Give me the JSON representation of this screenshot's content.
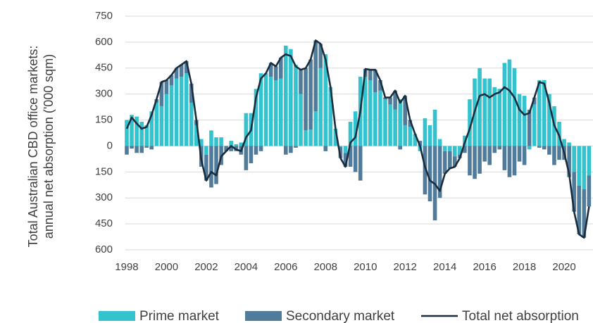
{
  "chart_data": {
    "type": "bar",
    "y_label_lines": [
      "Total Australian CBD office markets:",
      "annual net absorption ('000 sqm)"
    ],
    "x": [
      1998,
      1998.25,
      1998.5,
      1998.75,
      1999,
      1999.25,
      1999.5,
      1999.75,
      2000,
      2000.25,
      2000.5,
      2000.75,
      2001,
      2001.25,
      2001.5,
      2001.75,
      2002,
      2002.25,
      2002.5,
      2002.75,
      2003,
      2003.25,
      2003.5,
      2003.75,
      2004,
      2004.25,
      2004.5,
      2004.75,
      2005,
      2005.25,
      2005.5,
      2005.75,
      2006,
      2006.25,
      2006.5,
      2006.75,
      2007,
      2007.25,
      2007.5,
      2007.75,
      2008,
      2008.25,
      2008.5,
      2008.75,
      2009,
      2009.25,
      2009.5,
      2009.75,
      2010,
      2010.25,
      2010.5,
      2010.75,
      2011,
      2011.25,
      2011.5,
      2011.75,
      2012,
      2012.25,
      2012.5,
      2012.75,
      2013,
      2013.25,
      2013.5,
      2013.75,
      2014,
      2014.25,
      2014.5,
      2014.75,
      2015,
      2015.25,
      2015.5,
      2015.75,
      2016,
      2016.25,
      2016.5,
      2016.75,
      2017,
      2017.25,
      2017.5,
      2017.75,
      2018,
      2018.25,
      2018.5,
      2018.75,
      2019,
      2019.25,
      2019.5,
      2019.75,
      2020,
      2020.25,
      2020.5,
      2020.75,
      2021,
      2021.25
    ],
    "series": [
      {
        "name": "Prime market",
        "type": "bar",
        "color": "#33c3cf",
        "values": [
          150,
          180,
          170,
          140,
          120,
          200,
          250,
          230,
          300,
          350,
          390,
          400,
          420,
          250,
          120,
          40,
          -50,
          90,
          50,
          50,
          0,
          30,
          10,
          20,
          190,
          190,
          330,
          420,
          420,
          400,
          380,
          390,
          580,
          560,
          470,
          300,
          90,
          95,
          200,
          450,
          530,
          340,
          100,
          -5,
          -40,
          140,
          200,
          400,
          400,
          380,
          310,
          320,
          270,
          240,
          210,
          270,
          120,
          110,
          70,
          -30,
          160,
          120,
          210,
          40,
          -30,
          -30,
          -60,
          -50,
          60,
          270,
          390,
          450,
          390,
          390,
          340,
          330,
          480,
          500,
          450,
          300,
          290,
          -20,
          240,
          380,
          380,
          300,
          230,
          140,
          40,
          20,
          -150,
          -230,
          -250,
          -170
        ]
      },
      {
        "name": "Secondary market",
        "type": "bar",
        "color": "#517b9b",
        "values": [
          -50,
          -15,
          -40,
          -40,
          -10,
          -20,
          20,
          140,
          80,
          60,
          60,
          70,
          70,
          110,
          30,
          -120,
          -150,
          -240,
          -220,
          -110,
          -30,
          -30,
          -30,
          -50,
          -140,
          -100,
          -50,
          -30,
          0,
          80,
          80,
          120,
          -50,
          -40,
          -10,
          140,
          360,
          405,
          410,
          140,
          -30,
          0,
          0,
          -65,
          -80,
          -120,
          -150,
          -200,
          45,
          60,
          130,
          60,
          10,
          40,
          110,
          -20,
          170,
          40,
          0,
          30,
          -280,
          -320,
          -430,
          -300,
          -130,
          -100,
          -60,
          -20,
          -40,
          -170,
          -190,
          -160,
          -90,
          -110,
          -40,
          -20,
          -140,
          -180,
          -170,
          -90,
          -110,
          210,
          40,
          -10,
          -20,
          -50,
          -110,
          -80,
          -80,
          -180,
          -230,
          -280,
          -280,
          -180
        ]
      },
      {
        "name": "Total net absorption",
        "type": "line",
        "color": "#1b2d3d",
        "values": [
          100,
          165,
          130,
          100,
          110,
          180,
          270,
          370,
          380,
          410,
          450,
          470,
          490,
          360,
          150,
          -80,
          -200,
          -150,
          -170,
          -60,
          -30,
          0,
          -20,
          -30,
          50,
          90,
          280,
          390,
          420,
          480,
          460,
          510,
          530,
          520,
          460,
          440,
          450,
          500,
          610,
          590,
          500,
          340,
          100,
          -70,
          -120,
          20,
          50,
          200,
          445,
          440,
          440,
          380,
          280,
          280,
          320,
          250,
          290,
          150,
          70,
          0,
          -120,
          -200,
          -220,
          -260,
          -160,
          -130,
          -120,
          -70,
          20,
          100,
          200,
          290,
          300,
          280,
          300,
          310,
          340,
          320,
          280,
          210,
          180,
          190,
          280,
          370,
          360,
          250,
          120,
          60,
          -40,
          -160,
          -380,
          -510,
          -530,
          -350
        ]
      }
    ],
    "xlim": [
      1997.93,
      2021.45
    ],
    "xticks": [
      1998,
      2000,
      2002,
      2004,
      2006,
      2008,
      2010,
      2012,
      2014,
      2016,
      2018,
      2020
    ],
    "ylim": [
      -600,
      750
    ],
    "yticks": [
      750,
      600,
      450,
      300,
      150,
      0,
      {
        "value": -150,
        "label": "150"
      },
      {
        "value": -300,
        "label": "300"
      },
      {
        "value": -450,
        "label": "450"
      },
      {
        "value": -600,
        "label": "600"
      }
    ],
    "grid": true
  }
}
